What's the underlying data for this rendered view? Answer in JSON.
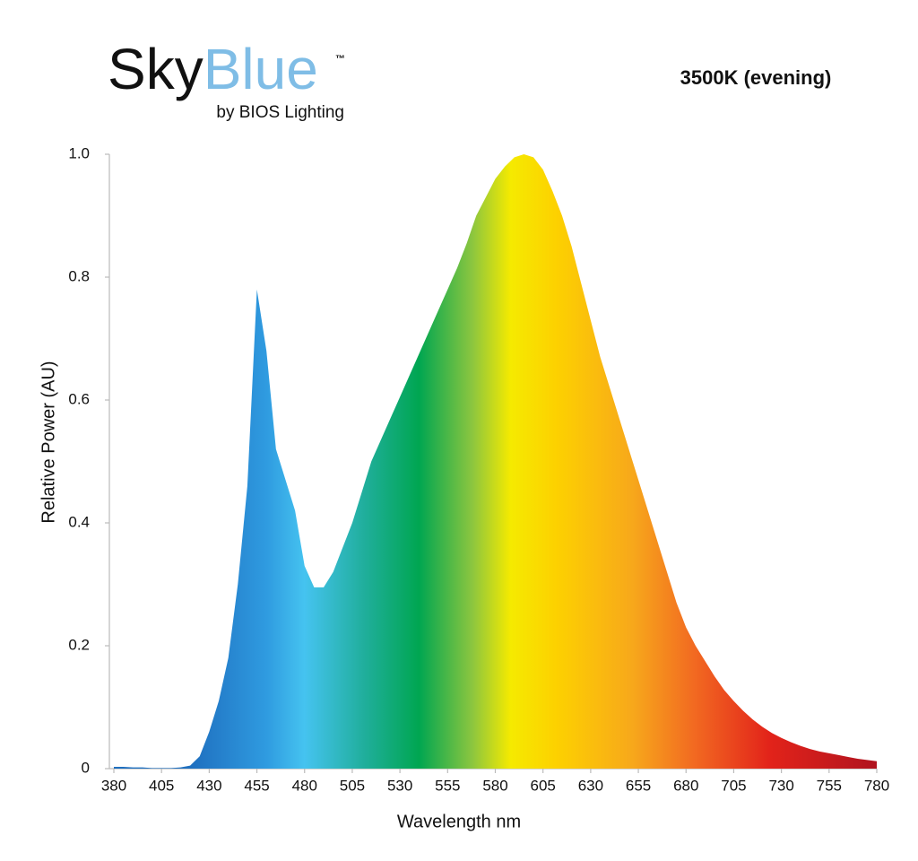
{
  "logo": {
    "sky": "Sky",
    "blue": "Blue",
    "tm": "™",
    "byline": "by BIOS Lighting"
  },
  "chart_data": {
    "type": "area",
    "title": "3500K (evening)",
    "x_label": "Wavelength nm",
    "y_label": "Relative Power (AU)",
    "x": [
      380,
      385,
      390,
      395,
      400,
      405,
      410,
      415,
      420,
      425,
      430,
      435,
      440,
      445,
      450,
      455,
      460,
      465,
      470,
      475,
      480,
      485,
      490,
      495,
      500,
      505,
      510,
      515,
      520,
      525,
      530,
      535,
      540,
      545,
      550,
      555,
      560,
      565,
      570,
      575,
      580,
      585,
      590,
      595,
      600,
      605,
      610,
      615,
      620,
      625,
      630,
      635,
      640,
      645,
      650,
      655,
      660,
      665,
      670,
      675,
      680,
      685,
      690,
      695,
      700,
      705,
      710,
      715,
      720,
      725,
      730,
      735,
      740,
      745,
      750,
      755,
      760,
      765,
      770,
      775,
      780
    ],
    "values": [
      0.003,
      0.003,
      0.002,
      0.002,
      0.001,
      0.001,
      0.001,
      0.002,
      0.005,
      0.02,
      0.06,
      0.11,
      0.18,
      0.3,
      0.46,
      0.78,
      0.68,
      0.52,
      0.47,
      0.42,
      0.33,
      0.295,
      0.295,
      0.32,
      0.36,
      0.4,
      0.45,
      0.5,
      0.535,
      0.57,
      0.605,
      0.64,
      0.675,
      0.71,
      0.745,
      0.78,
      0.815,
      0.855,
      0.9,
      0.93,
      0.96,
      0.98,
      0.995,
      1.0,
      0.995,
      0.975,
      0.94,
      0.9,
      0.85,
      0.79,
      0.73,
      0.67,
      0.62,
      0.57,
      0.52,
      0.47,
      0.42,
      0.37,
      0.32,
      0.27,
      0.23,
      0.2,
      0.175,
      0.15,
      0.128,
      0.11,
      0.094,
      0.08,
      0.068,
      0.058,
      0.05,
      0.043,
      0.037,
      0.032,
      0.028,
      0.025,
      0.022,
      0.019,
      0.016,
      0.014,
      0.012
    ],
    "xlim": [
      380,
      780
    ],
    "ylim": [
      0,
      1
    ],
    "xticks": [
      380,
      405,
      430,
      455,
      480,
      505,
      530,
      555,
      580,
      605,
      630,
      655,
      680,
      705,
      730,
      755,
      780
    ],
    "yticks": [
      0,
      0.2,
      0.4,
      0.6,
      0.8,
      {
        "value": 1,
        "label": "1.0"
      }
    ]
  }
}
